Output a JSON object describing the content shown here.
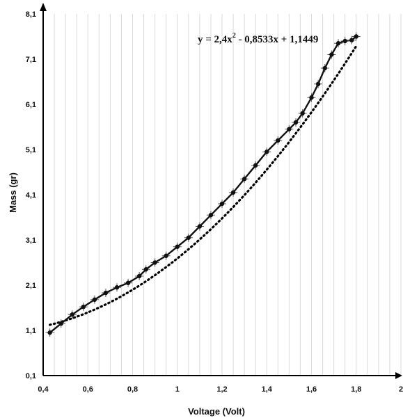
{
  "chart_data": {
    "type": "scatter",
    "xlabel": "Voltage (Volt)",
    "ylabel": "Mass (gr)",
    "xlim": [
      0.4,
      2
    ],
    "ylim": [
      0.1,
      8.1
    ],
    "x_ticks": [
      0.4,
      0.6,
      0.8,
      1,
      1.2,
      1.4,
      1.6,
      1.8,
      2
    ],
    "y_ticks": [
      0.1,
      1.1,
      2.1,
      3.1,
      4.1,
      5.1,
      6.1,
      7.1,
      8.1
    ],
    "x_tick_labels": [
      "0,4",
      "0,6",
      "0,8",
      "1",
      "1,2",
      "1,4",
      "1,6",
      "1,8",
      "2"
    ],
    "y_tick_labels": [
      "0,1",
      "1,1",
      "2,1",
      "3,1",
      "4,1",
      "5,1",
      "6,1",
      "7,1",
      "8,1"
    ],
    "grid": "vertical-minor",
    "equation": {
      "label": "y = 2,4x",
      "exponent": "2",
      "rest": " - 0,8533x + 1,1449"
    },
    "trendline": {
      "kind": "polynomial",
      "coefficients": [
        2.4,
        -0.8533,
        1.1449
      ],
      "style": "dotted"
    },
    "series": [
      {
        "style": "markers-with-error-bars",
        "color": "#111111",
        "x": [
          0.43,
          0.48,
          0.53,
          0.58,
          0.63,
          0.68,
          0.73,
          0.78,
          0.83,
          0.86,
          0.9,
          0.95,
          1.0,
          1.05,
          1.1,
          1.15,
          1.2,
          1.25,
          1.3,
          1.35,
          1.4,
          1.45,
          1.5,
          1.53,
          1.56,
          1.6,
          1.63,
          1.66,
          1.69,
          1.72,
          1.75,
          1.78,
          1.8
        ],
        "y": [
          1.05,
          1.25,
          1.45,
          1.62,
          1.78,
          1.93,
          2.05,
          2.15,
          2.3,
          2.45,
          2.6,
          2.75,
          2.95,
          3.15,
          3.4,
          3.65,
          3.9,
          4.15,
          4.45,
          4.75,
          5.05,
          5.3,
          5.55,
          5.7,
          5.9,
          6.25,
          6.55,
          6.9,
          7.2,
          7.45,
          7.5,
          7.52,
          7.6
        ]
      }
    ]
  }
}
